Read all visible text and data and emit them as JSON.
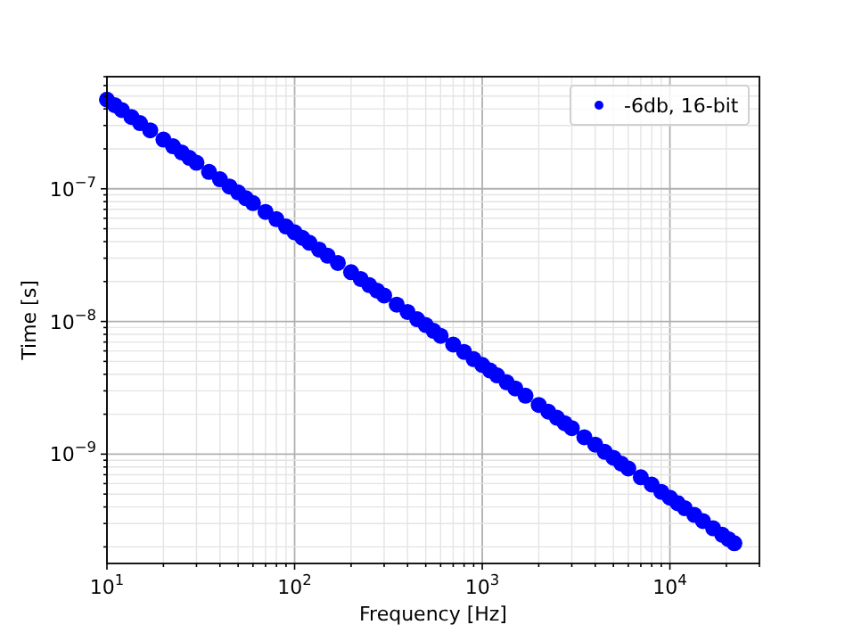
{
  "chart_data": {
    "type": "scatter",
    "xlabel": "Frequency [Hz]",
    "ylabel": "Time [s]",
    "log": "xy",
    "grid": true,
    "legend": "top right",
    "marker": "circle",
    "xlim": [
      10,
      30000
    ],
    "ylim": [
      1.5e-10,
      7e-07
    ],
    "xticks": [
      {
        "value": 10,
        "label": "10$^{1}$"
      },
      {
        "value": 20,
        "label": null
      },
      {
        "value": 30,
        "label": null
      },
      {
        "value": 40,
        "label": null
      },
      {
        "value": 50,
        "label": null
      },
      {
        "value": 60,
        "label": null
      },
      {
        "value": 70,
        "label": null
      },
      {
        "value": 80,
        "label": null
      },
      {
        "value": 90,
        "label": null
      },
      {
        "value": 100,
        "label": "10$^{2}$"
      },
      {
        "value": 200,
        "label": null
      },
      {
        "value": 300,
        "label": null
      },
      {
        "value": 400,
        "label": null
      },
      {
        "value": 500,
        "label": null
      },
      {
        "value": 600,
        "label": null
      },
      {
        "value": 700,
        "label": null
      },
      {
        "value": 800,
        "label": null
      },
      {
        "value": 900,
        "label": null
      },
      {
        "value": 1000,
        "label": "10$^{3}$"
      },
      {
        "value": 2000,
        "label": null
      },
      {
        "value": 3000,
        "label": null
      },
      {
        "value": 4000,
        "label": null
      },
      {
        "value": 5000,
        "label": null
      },
      {
        "value": 6000,
        "label": null
      },
      {
        "value": 7000,
        "label": null
      },
      {
        "value": 8000,
        "label": null
      },
      {
        "value": 9000,
        "label": null
      },
      {
        "value": 10000,
        "label": "10$^{4}$"
      },
      {
        "value": 20000,
        "label": null
      },
      {
        "value": 30000,
        "label": null
      }
    ],
    "yticks": [
      {
        "value": 2e-10,
        "label": null
      },
      {
        "value": 3e-10,
        "label": null
      },
      {
        "value": 4e-10,
        "label": null
      },
      {
        "value": 5e-10,
        "label": null
      },
      {
        "value": 6e-10,
        "label": null
      },
      {
        "value": 7e-10,
        "label": null
      },
      {
        "value": 8e-10,
        "label": null
      },
      {
        "value": 9e-10,
        "label": null
      },
      {
        "value": 1e-09,
        "label": "10$^{−9}$"
      },
      {
        "value": 2e-09,
        "label": null
      },
      {
        "value": 3e-09,
        "label": null
      },
      {
        "value": 4e-09,
        "label": null
      },
      {
        "value": 5e-09,
        "label": null
      },
      {
        "value": 6e-09,
        "label": null
      },
      {
        "value": 7e-09,
        "label": null
      },
      {
        "value": 8e-09,
        "label": null
      },
      {
        "value": 9e-09,
        "label": null
      },
      {
        "value": 1e-08,
        "label": "10$^{−8}$"
      },
      {
        "value": 2e-08,
        "label": null
      },
      {
        "value": 3e-08,
        "label": null
      },
      {
        "value": 4e-08,
        "label": null
      },
      {
        "value": 5e-08,
        "label": null
      },
      {
        "value": 6e-08,
        "label": null
      },
      {
        "value": 7e-08,
        "label": null
      },
      {
        "value": 8e-08,
        "label": null
      },
      {
        "value": 9e-08,
        "label": null
      },
      {
        "value": 1e-07,
        "label": "10$^{−7}$"
      },
      {
        "value": 2e-07,
        "label": null
      },
      {
        "value": 3e-07,
        "label": null
      },
      {
        "value": 4e-07,
        "label": null
      },
      {
        "value": 5e-07,
        "label": null
      },
      {
        "value": 6e-07,
        "label": null
      },
      {
        "value": 7e-07,
        "label": null
      }
    ],
    "x": [
      10,
      11,
      12,
      13.5,
      15,
      17,
      20,
      22.5,
      25,
      27.5,
      30,
      35,
      40,
      45,
      50,
      55,
      60,
      70,
      80,
      90,
      100,
      110,
      120,
      135,
      150,
      170,
      200,
      225,
      250,
      275,
      300,
      350,
      400,
      450,
      500,
      550,
      600,
      700,
      800,
      900,
      1000,
      1100,
      1200,
      1350,
      1500,
      1700,
      2000,
      2250,
      2500,
      2750,
      3000,
      3500,
      4000,
      4500,
      5000,
      5500,
      6000,
      7000,
      8000,
      9000,
      10000,
      11000,
      12000,
      13500,
      15000,
      17000,
      19000,
      20500,
      22050
    ],
    "series": [
      {
        "name": "-6db, 16-bit",
        "color": "#0000ff",
        "values": [
          4.7e-07,
          4.27e-07,
          3.92e-07,
          3.48e-07,
          3.13e-07,
          2.76e-07,
          2.35e-07,
          2.09e-07,
          1.88e-07,
          1.71e-07,
          1.57e-07,
          1.34e-07,
          1.18e-07,
          1.04e-07,
          9.4e-08,
          8.5e-08,
          7.8e-08,
          6.7e-08,
          5.9e-08,
          5.2e-08,
          4.7e-08,
          4.27e-08,
          3.92e-08,
          3.48e-08,
          3.13e-08,
          2.76e-08,
          2.35e-08,
          2.09e-08,
          1.88e-08,
          1.71e-08,
          1.57e-08,
          1.34e-08,
          1.18e-08,
          1.04e-08,
          9.4e-09,
          8.5e-09,
          7.8e-09,
          6.7e-09,
          5.9e-09,
          5.2e-09,
          4.7e-09,
          4.27e-09,
          3.92e-09,
          3.48e-09,
          3.13e-09,
          2.76e-09,
          2.35e-09,
          2.09e-09,
          1.88e-09,
          1.71e-09,
          1.57e-09,
          1.34e-09,
          1.18e-09,
          1.04e-09,
          9.4e-10,
          8.5e-10,
          7.8e-10,
          6.7e-10,
          5.9e-10,
          5.2e-10,
          4.7e-10,
          4.27e-10,
          3.92e-10,
          3.48e-10,
          3.13e-10,
          2.76e-10,
          2.47e-10,
          2.29e-10,
          2.13e-10
        ]
      }
    ]
  }
}
